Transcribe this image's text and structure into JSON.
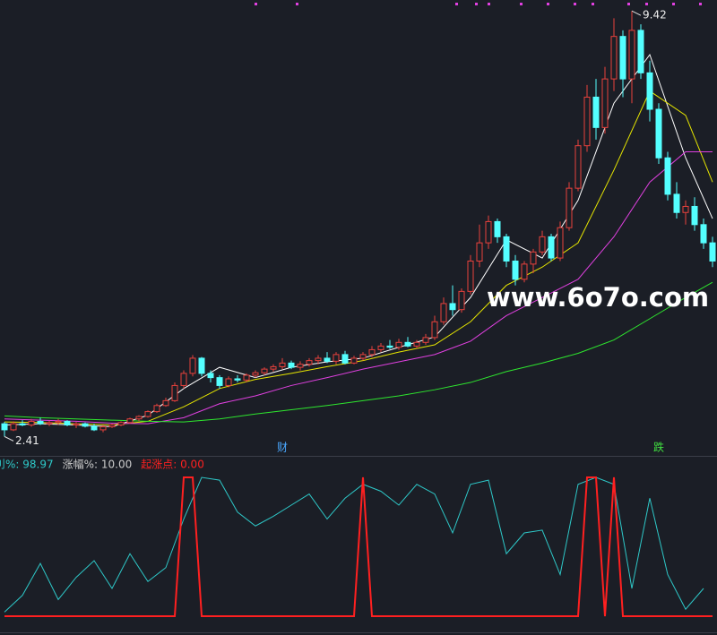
{
  "chart_data": [
    {
      "type": "candlestick",
      "up_color": "#e8413c",
      "down_color": "#54ffff",
      "ylim": [
        2.15,
        9.6
      ],
      "ohlc": [
        [
          2.62,
          2.65,
          2.41,
          2.52
        ],
        [
          2.52,
          2.66,
          2.5,
          2.62
        ],
        [
          2.62,
          2.68,
          2.58,
          2.6
        ],
        [
          2.6,
          2.7,
          2.57,
          2.66
        ],
        [
          2.66,
          2.72,
          2.6,
          2.62
        ],
        [
          2.62,
          2.67,
          2.58,
          2.64
        ],
        [
          2.64,
          2.7,
          2.6,
          2.66
        ],
        [
          2.66,
          2.68,
          2.58,
          2.6
        ],
        [
          2.6,
          2.65,
          2.55,
          2.62
        ],
        [
          2.62,
          2.64,
          2.56,
          2.58
        ],
        [
          2.58,
          2.62,
          2.5,
          2.52
        ],
        [
          2.52,
          2.6,
          2.48,
          2.57
        ],
        [
          2.57,
          2.62,
          2.55,
          2.6
        ],
        [
          2.6,
          2.66,
          2.58,
          2.64
        ],
        [
          2.64,
          2.72,
          2.62,
          2.7
        ],
        [
          2.7,
          2.76,
          2.66,
          2.74
        ],
        [
          2.74,
          2.84,
          2.72,
          2.82
        ],
        [
          2.82,
          2.95,
          2.8,
          2.92
        ],
        [
          2.92,
          3.05,
          2.9,
          3.0
        ],
        [
          3.0,
          3.3,
          2.98,
          3.25
        ],
        [
          3.25,
          3.5,
          3.2,
          3.45
        ],
        [
          3.45,
          3.75,
          3.4,
          3.7
        ],
        [
          3.7,
          3.72,
          3.4,
          3.45
        ],
        [
          3.45,
          3.5,
          3.3,
          3.38
        ],
        [
          3.38,
          3.42,
          3.2,
          3.25
        ],
        [
          3.25,
          3.4,
          3.22,
          3.36
        ],
        [
          3.36,
          3.42,
          3.3,
          3.34
        ],
        [
          3.34,
          3.45,
          3.3,
          3.42
        ],
        [
          3.42,
          3.5,
          3.38,
          3.46
        ],
        [
          3.46,
          3.55,
          3.42,
          3.52
        ],
        [
          3.52,
          3.6,
          3.48,
          3.56
        ],
        [
          3.56,
          3.7,
          3.52,
          3.62
        ],
        [
          3.62,
          3.66,
          3.52,
          3.55
        ],
        [
          3.55,
          3.65,
          3.5,
          3.6
        ],
        [
          3.6,
          3.7,
          3.56,
          3.66
        ],
        [
          3.66,
          3.75,
          3.6,
          3.7
        ],
        [
          3.7,
          3.8,
          3.62,
          3.65
        ],
        [
          3.65,
          3.8,
          3.6,
          3.76
        ],
        [
          3.76,
          3.82,
          3.6,
          3.62
        ],
        [
          3.62,
          3.74,
          3.6,
          3.7
        ],
        [
          3.7,
          3.8,
          3.66,
          3.76
        ],
        [
          3.76,
          3.9,
          3.72,
          3.84
        ],
        [
          3.84,
          3.95,
          3.8,
          3.9
        ],
        [
          3.9,
          4.0,
          3.85,
          3.88
        ],
        [
          3.88,
          4.02,
          3.84,
          3.96
        ],
        [
          3.96,
          4.05,
          3.88,
          3.9
        ],
        [
          3.9,
          4.0,
          3.86,
          3.96
        ],
        [
          3.96,
          4.1,
          3.92,
          4.04
        ],
        [
          4.04,
          4.4,
          4.0,
          4.3
        ],
        [
          4.3,
          4.7,
          4.25,
          4.6
        ],
        [
          4.6,
          4.9,
          4.4,
          4.5
        ],
        [
          4.5,
          4.85,
          4.45,
          4.8
        ],
        [
          4.8,
          5.4,
          4.75,
          5.3
        ],
        [
          5.3,
          5.9,
          5.2,
          5.6
        ],
        [
          5.6,
          6.05,
          5.5,
          5.95
        ],
        [
          5.95,
          6.0,
          5.6,
          5.7
        ],
        [
          5.7,
          5.75,
          5.2,
          5.3
        ],
        [
          5.3,
          5.4,
          4.9,
          5.0
        ],
        [
          5.0,
          5.3,
          4.95,
          5.25
        ],
        [
          5.25,
          5.5,
          5.1,
          5.45
        ],
        [
          5.45,
          5.8,
          5.4,
          5.7
        ],
        [
          5.7,
          5.75,
          5.3,
          5.35
        ],
        [
          5.35,
          5.95,
          5.3,
          5.85
        ],
        [
          5.85,
          6.6,
          5.8,
          6.5
        ],
        [
          6.5,
          7.3,
          6.45,
          7.2
        ],
        [
          7.2,
          8.2,
          7.1,
          8.0
        ],
        [
          8.0,
          8.3,
          7.3,
          7.5
        ],
        [
          7.5,
          8.5,
          7.4,
          8.3
        ],
        [
          8.3,
          9.3,
          8.1,
          9.0
        ],
        [
          9.0,
          9.1,
          8.0,
          8.3
        ],
        [
          8.3,
          9.42,
          7.9,
          9.1
        ],
        [
          9.1,
          9.2,
          8.3,
          8.4
        ],
        [
          8.4,
          8.6,
          7.6,
          7.8
        ],
        [
          7.8,
          7.9,
          6.9,
          7.0
        ],
        [
          7.0,
          7.1,
          6.3,
          6.4
        ],
        [
          6.4,
          6.6,
          6.0,
          6.1
        ],
        [
          6.1,
          6.3,
          5.9,
          6.2
        ],
        [
          6.2,
          6.35,
          5.8,
          5.9
        ],
        [
          5.9,
          6.0,
          5.5,
          5.6
        ],
        [
          5.6,
          5.7,
          5.2,
          5.3
        ]
      ],
      "series": [
        {
          "color": "#ffffff",
          "x": [
            0,
            4,
            8,
            12,
            16,
            20,
            24,
            28,
            32,
            36,
            40,
            44,
            48,
            52,
            56,
            60,
            64,
            68,
            72,
            76,
            79
          ],
          "values": [
            2.6,
            2.62,
            2.6,
            2.57,
            2.76,
            3.2,
            3.55,
            3.38,
            3.55,
            3.64,
            3.7,
            3.88,
            4.05,
            4.7,
            5.65,
            5.35,
            6.3,
            7.9,
            8.7,
            7.0,
            6.0
          ]
        },
        {
          "color": "#e6e600",
          "x": [
            0,
            4,
            8,
            12,
            16,
            20,
            24,
            28,
            32,
            36,
            40,
            44,
            48,
            52,
            56,
            60,
            64,
            68,
            72,
            76,
            79
          ],
          "values": [
            2.65,
            2.64,
            2.62,
            2.6,
            2.66,
            2.9,
            3.2,
            3.35,
            3.45,
            3.56,
            3.66,
            3.8,
            3.92,
            4.3,
            4.9,
            5.2,
            5.6,
            6.8,
            8.1,
            7.7,
            6.6
          ]
        },
        {
          "color": "#e040e0",
          "x": [
            0,
            4,
            8,
            12,
            16,
            20,
            24,
            28,
            32,
            36,
            40,
            44,
            48,
            52,
            56,
            60,
            64,
            68,
            72,
            76,
            79
          ],
          "values": [
            2.7,
            2.68,
            2.66,
            2.63,
            2.62,
            2.72,
            2.95,
            3.08,
            3.25,
            3.38,
            3.52,
            3.64,
            3.76,
            3.98,
            4.4,
            4.7,
            5.0,
            5.7,
            6.6,
            7.1,
            7.1
          ]
        },
        {
          "color": "#2ee62e",
          "x": [
            0,
            4,
            8,
            12,
            16,
            20,
            24,
            28,
            32,
            36,
            40,
            44,
            48,
            52,
            56,
            60,
            64,
            68,
            72,
            76,
            79
          ],
          "values": [
            2.75,
            2.72,
            2.7,
            2.68,
            2.66,
            2.65,
            2.7,
            2.78,
            2.85,
            2.92,
            3.0,
            3.08,
            3.18,
            3.3,
            3.48,
            3.62,
            3.78,
            4.0,
            4.35,
            4.7,
            4.95
          ]
        }
      ],
      "annotations": [
        {
          "text": "2.41",
          "index": 0,
          "value": 2.41
        },
        {
          "text": "9.42",
          "index": 70,
          "value": 9.42
        }
      ],
      "markers": [
        {
          "text": "财",
          "index": 31,
          "color": "#4aa8ff"
        },
        {
          "text": "跌",
          "index": 73,
          "color": "#40e040"
        }
      ],
      "watermark": "www.6o7o.com"
    },
    {
      "type": "line",
      "ylim": [
        0,
        100
      ],
      "series": [
        {
          "legend_text": "刂%: 98.97",
          "color": "#2ec8c8",
          "x": [
            0,
            2,
            4,
            6,
            8,
            10,
            12,
            14,
            16,
            18,
            20,
            22,
            24,
            26,
            28,
            30,
            32,
            34,
            36,
            38,
            40,
            42,
            44,
            46,
            48,
            50,
            52,
            54,
            56,
            58,
            60,
            62,
            64,
            66,
            68,
            70,
            72,
            74,
            76,
            78
          ],
          "values": [
            3,
            15,
            38,
            12,
            28,
            40,
            20,
            45,
            25,
            35,
            70,
            100,
            98,
            75,
            65,
            72,
            80,
            88,
            70,
            85,
            95,
            90,
            80,
            95,
            88,
            60,
            95,
            98,
            45,
            60,
            62,
            30,
            95,
            100,
            95,
            20,
            85,
            30,
            5,
            20
          ]
        },
        {
          "legend_text": "涨幅%: 10.00",
          "color": "#cccccc",
          "x": [],
          "values": []
        },
        {
          "legend_text": "起涨点: 0.00",
          "color": "#ff2020",
          "x": [
            0,
            19,
            20,
            21,
            22,
            39,
            40,
            41,
            64,
            65,
            66,
            67,
            68,
            69,
            79
          ],
          "values": [
            0,
            0,
            100,
            100,
            0,
            0,
            100,
            0,
            0,
            100,
            100,
            0,
            100,
            0,
            0
          ]
        }
      ]
    }
  ]
}
